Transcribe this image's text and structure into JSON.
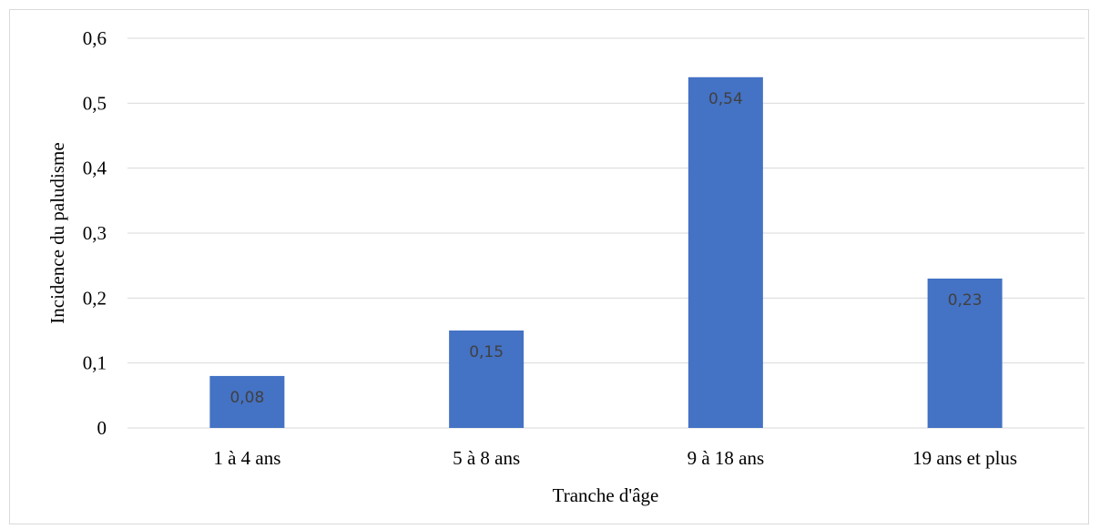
{
  "chart_data": {
    "type": "bar",
    "title": "",
    "xlabel": "Tranche d'âge",
    "ylabel": "Incidence du paludisme",
    "categories": [
      "1 à 4 ans",
      "5 à 8 ans",
      "9 à 18 ans",
      "19 ans et plus"
    ],
    "values": [
      0.08,
      0.15,
      0.54,
      0.23
    ],
    "data_labels": [
      "0,08",
      "0,15",
      "0,54",
      "0,23"
    ],
    "ylim": [
      0,
      0.6
    ],
    "yticks": [
      0,
      0.1,
      0.2,
      0.3,
      0.4,
      0.5,
      0.6
    ],
    "ytick_labels": [
      "0",
      "0,1",
      "0,2",
      "0,3",
      "0,4",
      "0,5",
      "0,6"
    ],
    "grid": true,
    "legend": "none",
    "colors": {
      "bar": "#4472c4",
      "grid": "#d9d9d9",
      "data_label": "#404040"
    }
  }
}
